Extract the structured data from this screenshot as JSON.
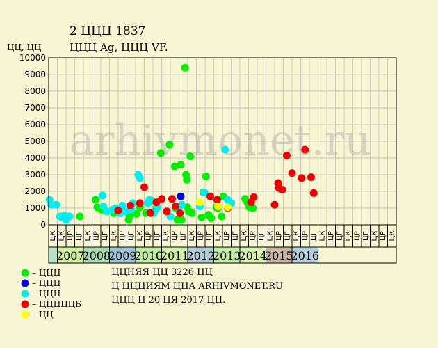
{
  "header": {
    "title": "2 ЦЦЦ 1837",
    "subtitle": "ЦЦЦ Ag, ЦЦЦ VF.",
    "y_unit": "ЦЦ, ЦЦ"
  },
  "watermark": "arhivmonet.ru",
  "footer": {
    "line1": "ЦЦНЯЯ ЦЦ 3226 ЦЦ",
    "line2": "Ц ЦЦЦИЯМ ЦЦА ARHIVMONET.RU",
    "line3": "ЦЦЦ Ц 20 ЦЯ 2017 ЦЦ."
  },
  "chart_data": {
    "type": "scatter",
    "ylim": [
      0,
      10000
    ],
    "y_ticks": [
      0,
      1000,
      2000,
      3000,
      4000,
      5000,
      6000,
      7000,
      8000,
      9000,
      10000
    ],
    "grid": true,
    "x_range": [
      0,
      40
    ],
    "quarter_labels": [
      "ЦК",
      "ЦК",
      "ЦР",
      "ЦГ",
      "ЦК",
      "ЦР",
      "ЦГ",
      "ЦК",
      "ЦР",
      "ЦГ",
      "ЦК",
      "ЦР",
      "ЦГ",
      "ЦК",
      "ЦР",
      "ЦГ",
      "ЦК",
      "ЦР",
      "ЦГ",
      "ЦК",
      "ЦР",
      "ЦГ",
      "ЦК",
      "ЦР",
      "ЦГ",
      "ЦК",
      "ЦР",
      "ЦГ",
      "ЦК",
      "ЦР",
      "ЦГ",
      "ЦК",
      "ЦР",
      "ЦГ",
      "ЦК",
      "ЦР",
      "ЦГ",
      "ЦК",
      "ЦР",
      "ЦК"
    ],
    "years": [
      {
        "label": "",
        "start": 0,
        "end": 1,
        "color": "#b6e3c4"
      },
      {
        "label": "2007",
        "start": 1,
        "end": 4,
        "color": "#d0efa2"
      },
      {
        "label": "2008",
        "start": 4,
        "end": 7,
        "color": "#a9d9b0"
      },
      {
        "label": "2009",
        "start": 7,
        "end": 10,
        "color": "#9fc2d6"
      },
      {
        "label": "2010",
        "start": 10,
        "end": 13,
        "color": "#c0eba3"
      },
      {
        "label": "2011",
        "start": 13,
        "end": 16,
        "color": "#d3f0ab"
      },
      {
        "label": "2012",
        "start": 16,
        "end": 19,
        "color": "#b2cbd6"
      },
      {
        "label": "2013",
        "start": 19,
        "end": 22,
        "color": "#c3eda5"
      },
      {
        "label": "2014",
        "start": 22,
        "end": 25,
        "color": "#d8f4b2"
      },
      {
        "label": "2015",
        "start": 25,
        "end": 28,
        "color": "#c7b5a3"
      },
      {
        "label": "2016",
        "start": 28,
        "end": 31,
        "color": "#b7cfda"
      }
    ],
    "series": [
      {
        "name": "– ЦЦЦ",
        "color": "#00ee00",
        "points": [
          [
            3.6,
            500
          ],
          [
            5.4,
            1500
          ],
          [
            5.6,
            1050
          ],
          [
            6.1,
            900
          ],
          [
            7.5,
            700
          ],
          [
            8.6,
            800
          ],
          [
            9.2,
            300
          ],
          [
            9.3,
            550
          ],
          [
            10.1,
            650
          ],
          [
            10.5,
            1050
          ],
          [
            11.2,
            700
          ],
          [
            11.8,
            1450
          ],
          [
            12.4,
            1000
          ],
          [
            12.9,
            4300
          ],
          [
            13.9,
            4800
          ],
          [
            14.5,
            3500
          ],
          [
            14.6,
            1000
          ],
          [
            14.8,
            300
          ],
          [
            15.2,
            3600
          ],
          [
            15.3,
            300
          ],
          [
            15.7,
            9400
          ],
          [
            15.8,
            3000
          ],
          [
            15.9,
            2700
          ],
          [
            15.95,
            1050
          ],
          [
            16.1,
            800
          ],
          [
            16.3,
            4100
          ],
          [
            16.5,
            700
          ],
          [
            17.6,
            450
          ],
          [
            17.8,
            1950
          ],
          [
            18.1,
            2900
          ],
          [
            18.4,
            600
          ],
          [
            18.7,
            400
          ],
          [
            19.3,
            1050
          ],
          [
            19.5,
            1000
          ],
          [
            19.9,
            500
          ],
          [
            20.1,
            1700
          ],
          [
            22.6,
            1550
          ],
          [
            22.9,
            1300
          ],
          [
            23.1,
            1050
          ],
          [
            23.5,
            1000
          ]
        ]
      },
      {
        "name": "– ЦЦЦ",
        "color": "#0000ee",
        "points": [
          [
            15.2,
            1700
          ]
        ]
      },
      {
        "name": "– ЦЦЦ",
        "color": "#00eeee",
        "points": [
          [
            0.1,
            1500
          ],
          [
            0.3,
            1200
          ],
          [
            0.9,
            1200
          ],
          [
            1.3,
            500
          ],
          [
            1.6,
            450
          ],
          [
            1.8,
            550
          ],
          [
            2.0,
            300
          ],
          [
            2.4,
            500
          ],
          [
            6.2,
            1750
          ],
          [
            6.3,
            1100
          ],
          [
            6.7,
            800
          ],
          [
            7.4,
            900
          ],
          [
            7.7,
            1000
          ],
          [
            8.2,
            700
          ],
          [
            8.5,
            1150
          ],
          [
            8.8,
            800
          ],
          [
            9.5,
            900
          ],
          [
            9.7,
            1300
          ],
          [
            10.3,
            3000
          ],
          [
            10.5,
            2800
          ],
          [
            11.4,
            1300
          ],
          [
            11.6,
            1500
          ],
          [
            12.1,
            700
          ],
          [
            12.5,
            1050
          ],
          [
            14.0,
            500
          ],
          [
            14.9,
            1050
          ],
          [
            15.3,
            1200
          ],
          [
            17.4,
            1100
          ],
          [
            17.9,
            1950
          ],
          [
            20.3,
            4500
          ],
          [
            20.6,
            1500
          ],
          [
            21.0,
            1300
          ]
        ]
      },
      {
        "name": "– ЦЦЦЦЦБ",
        "color": "#ee0000",
        "points": [
          [
            8.0,
            850
          ],
          [
            9.4,
            1150
          ],
          [
            10.5,
            1300
          ],
          [
            11.0,
            2250
          ],
          [
            11.7,
            700
          ],
          [
            12.4,
            1350
          ],
          [
            13.0,
            1550
          ],
          [
            13.6,
            800
          ],
          [
            14.2,
            1550
          ],
          [
            14.6,
            1100
          ],
          [
            15.1,
            700
          ],
          [
            18.6,
            1700
          ],
          [
            19.4,
            1500
          ],
          [
            20.6,
            1000
          ],
          [
            23.3,
            1350
          ],
          [
            23.6,
            1650
          ],
          [
            26.0,
            1200
          ],
          [
            26.4,
            2500
          ],
          [
            26.5,
            2200
          ],
          [
            26.9,
            2100
          ],
          [
            27.4,
            4150
          ],
          [
            28.0,
            3100
          ],
          [
            29.1,
            2800
          ],
          [
            29.5,
            4500
          ],
          [
            30.2,
            2850
          ],
          [
            30.5,
            1900
          ]
        ]
      },
      {
        "name": "– ЦЦ",
        "color": "#ffff00",
        "points": [
          [
            17.4,
            1350
          ],
          [
            19.5,
            1100
          ],
          [
            20.6,
            1050
          ]
        ]
      }
    ]
  }
}
